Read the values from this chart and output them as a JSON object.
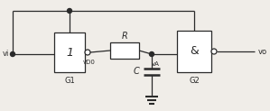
{
  "bg_color": "#f0ede8",
  "line_color": "#2a2a2a",
  "text_color": "#2a2a2a",
  "vi_label": "vi",
  "vo_label": "vo",
  "g1_label": "G1",
  "g2_label": "G2",
  "g1_inner": "1",
  "g2_inner": "&",
  "R_label": "R",
  "C_label": "C",
  "vD0_label": "vD0",
  "vA_label": "vA",
  "figsize": [
    2.99,
    1.23
  ],
  "dpi": 100
}
